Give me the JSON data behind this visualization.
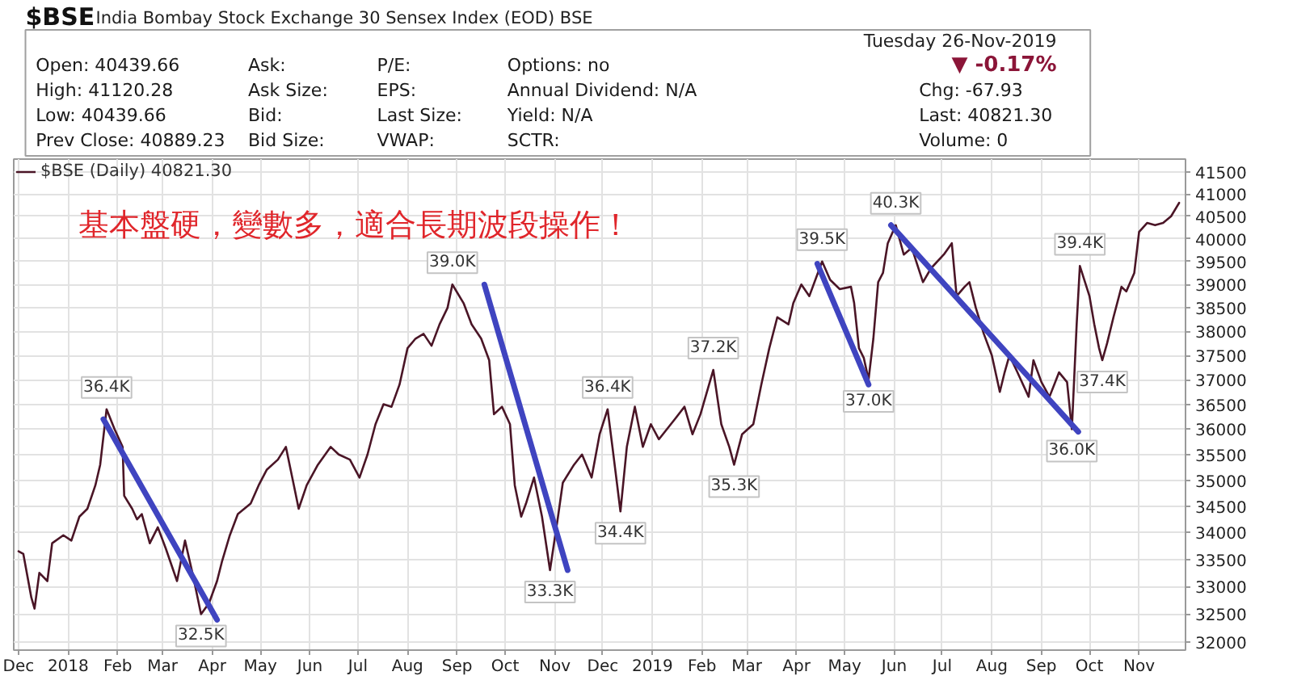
{
  "chart_data": {
    "type": "line",
    "title": "$BSE",
    "subtitle": "India Bombay Stock Exchange 30 Sensex Index (EOD) BSE",
    "annotations": [
      "基本盤硬，變數多，適合長期波段操作！",
      "Tuesday 26-Nov-2019",
      "Open: 40439.66",
      "Ask:",
      "P/E:",
      "Options: no",
      "▼ -0.17%",
      "High: 41120.28",
      "Ask Size:",
      "EPS:",
      "Annual Dividend: N/A",
      "Chg: -67.93",
      "Low: 40439.66",
      "Bid:",
      "Last Size:",
      "Yield: N/A",
      "Last: 40821.30",
      "Prev Close: 40889.23",
      "Bid Size:",
      "VWAP:",
      "SCTR:",
      "Volume: 0",
      {
        "text": "36.4K",
        "x": "2018-01-25",
        "y": 36400
      },
      {
        "text": "32.5K",
        "x": "2018-03-25",
        "y": 32500
      },
      {
        "text": "39.0K",
        "x": "2018-08-29",
        "y": 39000
      },
      {
        "text": "33.3K",
        "x": "2018-10-29",
        "y": 33300
      },
      {
        "text": "36.4K",
        "x": "2018-12-04",
        "y": 36400
      },
      {
        "text": "34.4K",
        "x": "2018-12-12",
        "y": 34400
      },
      {
        "text": "37.2K",
        "x": "2019-02-08",
        "y": 37200
      },
      {
        "text": "35.3K",
        "x": "2019-02-21",
        "y": 35300
      },
      {
        "text": "39.5K",
        "x": "2019-04-17",
        "y": 39500
      },
      {
        "text": "37.0K",
        "x": "2019-05-16",
        "y": 37000
      },
      {
        "text": "40.3K",
        "x": "2019-06-02",
        "y": 40300
      },
      {
        "text": "36.0K",
        "x": "2019-09-20",
        "y": 36000
      },
      {
        "text": "39.4K",
        "x": "2019-09-25",
        "y": 39400
      },
      {
        "text": "37.4K",
        "x": "2019-10-09",
        "y": 37400
      }
    ],
    "x": [
      "2017-12-01",
      "2017-12-04",
      "2017-12-09",
      "2017-12-11",
      "2017-12-14",
      "2017-12-19",
      "2017-12-22",
      "2017-12-29",
      "2018-01-03",
      "2018-01-08",
      "2018-01-13",
      "2018-01-18",
      "2018-01-21",
      "2018-01-25",
      "2018-01-30",
      "2018-02-04",
      "2018-02-05",
      "2018-02-10",
      "2018-02-13",
      "2018-02-16",
      "2018-02-21",
      "2018-02-26",
      "2018-03-03",
      "2018-03-10",
      "2018-03-15",
      "2018-03-20",
      "2018-03-25",
      "2018-03-30",
      "2018-04-04",
      "2018-04-07",
      "2018-04-12",
      "2018-04-17",
      "2018-04-25",
      "2018-04-30",
      "2018-05-05",
      "2018-05-12",
      "2018-05-17",
      "2018-05-22",
      "2018-05-25",
      "2018-05-30",
      "2018-06-06",
      "2018-06-14",
      "2018-06-19",
      "2018-06-26",
      "2018-07-02",
      "2018-07-07",
      "2018-07-12",
      "2018-07-17",
      "2018-07-22",
      "2018-07-27",
      "2018-08-01",
      "2018-08-06",
      "2018-08-11",
      "2018-08-16",
      "2018-08-21",
      "2018-08-26",
      "2018-08-29",
      "2018-09-05",
      "2018-09-10",
      "2018-09-16",
      "2018-09-21",
      "2018-09-24",
      "2018-09-29",
      "2018-10-04",
      "2018-10-07",
      "2018-10-11",
      "2018-10-14",
      "2018-10-19",
      "2018-10-24",
      "2018-10-29",
      "2018-11-03",
      "2018-11-06",
      "2018-11-13",
      "2018-11-18",
      "2018-11-24",
      "2018-11-29",
      "2018-12-04",
      "2018-12-07",
      "2018-12-12",
      "2018-12-16",
      "2018-12-21",
      "2018-12-26",
      "2018-12-31",
      "2019-01-05",
      "2019-01-10",
      "2019-01-15",
      "2019-01-21",
      "2019-01-26",
      "2019-01-31",
      "2019-02-08",
      "2019-02-13",
      "2019-02-18",
      "2019-02-21",
      "2019-02-26",
      "2019-03-05",
      "2019-03-10",
      "2019-03-15",
      "2019-03-20",
      "2019-03-27",
      "2019-03-30",
      "2019-04-04",
      "2019-04-09",
      "2019-04-17",
      "2019-04-22",
      "2019-04-28",
      "2019-05-05",
      "2019-05-07",
      "2019-05-10",
      "2019-05-13",
      "2019-05-16",
      "2019-05-19",
      "2019-05-22",
      "2019-05-25",
      "2019-05-28",
      "2019-06-02",
      "2019-06-07",
      "2019-06-12",
      "2019-06-19",
      "2019-06-24",
      "2019-07-02",
      "2019-07-07",
      "2019-07-10",
      "2019-07-15",
      "2019-07-18",
      "2019-07-22",
      "2019-07-27",
      "2019-08-01",
      "2019-08-06",
      "2019-08-09",
      "2019-08-12",
      "2019-08-17",
      "2019-08-24",
      "2019-08-27",
      "2019-09-01",
      "2019-09-06",
      "2019-09-12",
      "2019-09-17",
      "2019-09-20",
      "2019-09-23",
      "2019-09-25",
      "2019-10-01",
      "2019-10-04",
      "2019-10-07",
      "2019-10-09",
      "2019-10-12",
      "2019-10-16",
      "2019-10-21",
      "2019-10-24",
      "2019-10-29",
      "2019-11-01",
      "2019-11-06",
      "2019-11-11",
      "2019-11-16",
      "2019-11-21",
      "2019-11-26"
    ],
    "series": [
      {
        "name": "$BSE (Daily) 40821.30",
        "color": "#4a1526",
        "values": [
          33650,
          33600,
          32800,
          32600,
          33250,
          33100,
          33800,
          33950,
          33850,
          34300,
          34450,
          34900,
          35300,
          36400,
          36000,
          35650,
          34700,
          34450,
          34250,
          34350,
          33800,
          34100,
          33700,
          33100,
          33850,
          33200,
          32500,
          32700,
          33100,
          33450,
          33950,
          34350,
          34550,
          34900,
          35200,
          35400,
          35650,
          34900,
          34450,
          34900,
          35300,
          35650,
          35500,
          35400,
          35050,
          35500,
          36100,
          36500,
          36450,
          36900,
          37650,
          37850,
          37950,
          37700,
          38150,
          38500,
          39000,
          38600,
          38150,
          37850,
          37400,
          36300,
          36450,
          36100,
          34900,
          34300,
          34550,
          35050,
          34300,
          33300,
          34300,
          34950,
          35300,
          35500,
          35050,
          35900,
          36400,
          35650,
          34400,
          35650,
          36450,
          35650,
          36100,
          35800,
          36000,
          36200,
          36450,
          35900,
          36300,
          37200,
          36100,
          35650,
          35300,
          35900,
          36100,
          36900,
          37650,
          38300,
          38150,
          38600,
          39000,
          38750,
          39500,
          39100,
          38900,
          38950,
          38600,
          37650,
          37450,
          37000,
          37850,
          39050,
          39250,
          39900,
          40300,
          39650,
          39800,
          39050,
          39350,
          39650,
          39900,
          38750,
          38950,
          39050,
          38500,
          37950,
          37500,
          36750,
          37150,
          37500,
          37150,
          36650,
          37400,
          36950,
          36650,
          37150,
          36950,
          36000,
          38150,
          39400,
          38750,
          38150,
          37650,
          37400,
          37750,
          38300,
          38950,
          38850,
          39250,
          40150,
          40350,
          40300,
          40350,
          40500,
          40800
        ]
      },
      {
        "type": "line",
        "color": "#3f44c0",
        "x": [
          "2018-01-23",
          "2018-04-04"
        ],
        "values": [
          36200,
          32400
        ]
      },
      {
        "type": "line",
        "color": "#3f44c0",
        "x": [
          "2018-09-18",
          "2018-11-09"
        ],
        "values": [
          39000,
          33300
        ]
      },
      {
        "type": "line",
        "color": "#3f44c0",
        "x": [
          "2019-04-14",
          "2019-05-16"
        ],
        "values": [
          39450,
          36900
        ]
      },
      {
        "type": "line",
        "color": "#3f44c0",
        "x": [
          "2019-05-30",
          "2019-09-24"
        ],
        "values": [
          40300,
          35950
        ]
      }
    ],
    "xlim": [
      "2017-11-28",
      "2019-11-30"
    ],
    "xticks": [
      {
        "value": "2017-12-01",
        "label": "Dec"
      },
      {
        "value": "2018-01-01",
        "label": "2018"
      },
      {
        "value": "2018-02-01",
        "label": "Feb"
      },
      {
        "value": "2018-03-01",
        "label": "Mar"
      },
      {
        "value": "2018-04-01",
        "label": "Apr"
      },
      {
        "value": "2018-05-01",
        "label": "May"
      },
      {
        "value": "2018-06-01",
        "label": "Jun"
      },
      {
        "value": "2018-07-01",
        "label": "Jul"
      },
      {
        "value": "2018-08-01",
        "label": "Aug"
      },
      {
        "value": "2018-09-01",
        "label": "Sep"
      },
      {
        "value": "2018-10-01",
        "label": "Oct"
      },
      {
        "value": "2018-11-01",
        "label": "Nov"
      },
      {
        "value": "2018-12-01",
        "label": "Dec"
      },
      {
        "value": "2019-01-01",
        "label": "2019"
      },
      {
        "value": "2019-02-01",
        "label": "Feb"
      },
      {
        "value": "2019-03-01",
        "label": "Mar"
      },
      {
        "value": "2019-04-01",
        "label": "Apr"
      },
      {
        "value": "2019-05-01",
        "label": "May"
      },
      {
        "value": "2019-06-01",
        "label": "Jun"
      },
      {
        "value": "2019-07-01",
        "label": "Jul"
      },
      {
        "value": "2019-08-01",
        "label": "Aug"
      },
      {
        "value": "2019-09-01",
        "label": "Sep"
      },
      {
        "value": "2019-10-01",
        "label": "Oct"
      },
      {
        "value": "2019-11-01",
        "label": "Nov"
      }
    ],
    "ylim": [
      31860,
      41800
    ],
    "yticks": [
      32000,
      32500,
      33000,
      33500,
      34000,
      34500,
      35000,
      35500,
      36000,
      36500,
      37000,
      37500,
      38000,
      38500,
      39000,
      39500,
      40000,
      40500,
      41000,
      41500
    ],
    "log": "y",
    "grid": true,
    "legend": "top left",
    "line_style": "solid"
  }
}
